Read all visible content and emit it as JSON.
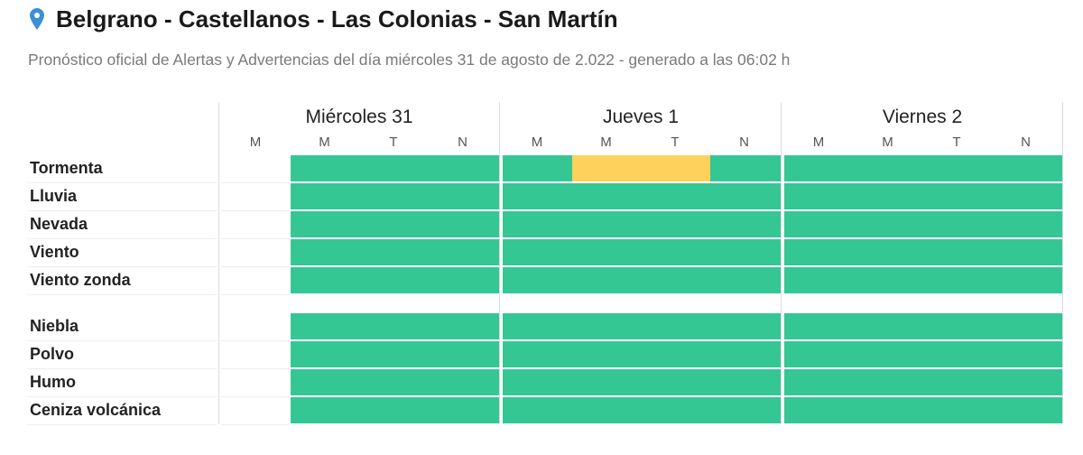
{
  "header": {
    "icon": "map-pin-icon",
    "title": "Belgrano - Castellanos - Las Colonias - San Martín",
    "subtitle": "Pronóstico oficial de Alertas y Advertencias del día miércoles 31 de agosto de 2.022 - generado a las 06:02 h"
  },
  "colors": {
    "green": "#34c794",
    "yellow": "#fdd15b",
    "pin": "#3d8fd8"
  },
  "days": [
    {
      "label": "Miércoles 31",
      "slots": [
        "M",
        "M",
        "T",
        "N"
      ]
    },
    {
      "label": "Jueves 1",
      "slots": [
        "M",
        "M",
        "T",
        "N"
      ]
    },
    {
      "label": "Viernes 2",
      "slots": [
        "M",
        "M",
        "T",
        "N"
      ]
    }
  ],
  "rows": [
    {
      "label": "Tormenta",
      "levels": [
        null,
        "green",
        "green",
        "green",
        "green",
        "yellow",
        "yellow",
        "green",
        "green",
        "green",
        "green",
        "green"
      ]
    },
    {
      "label": "Lluvia",
      "levels": [
        null,
        "green",
        "green",
        "green",
        "green",
        "green",
        "green",
        "green",
        "green",
        "green",
        "green",
        "green"
      ]
    },
    {
      "label": "Nevada",
      "levels": [
        null,
        "green",
        "green",
        "green",
        "green",
        "green",
        "green",
        "green",
        "green",
        "green",
        "green",
        "green"
      ]
    },
    {
      "label": "Viento",
      "levels": [
        null,
        "green",
        "green",
        "green",
        "green",
        "green",
        "green",
        "green",
        "green",
        "green",
        "green",
        "green"
      ]
    },
    {
      "label": "Viento zonda",
      "levels": [
        null,
        "green",
        "green",
        "green",
        "green",
        "green",
        "green",
        "green",
        "green",
        "green",
        "green",
        "green"
      ]
    },
    {
      "label": "Niebla",
      "levels": [
        null,
        "green",
        "green",
        "green",
        "green",
        "green",
        "green",
        "green",
        "green",
        "green",
        "green",
        "green"
      ]
    },
    {
      "label": "Polvo",
      "levels": [
        null,
        "green",
        "green",
        "green",
        "green",
        "green",
        "green",
        "green",
        "green",
        "green",
        "green",
        "green"
      ]
    },
    {
      "label": "Humo",
      "levels": [
        null,
        "green",
        "green",
        "green",
        "green",
        "green",
        "green",
        "green",
        "green",
        "green",
        "green",
        "green"
      ]
    },
    {
      "label": "Ceniza volcánica",
      "levels": [
        null,
        "green",
        "green",
        "green",
        "green",
        "green",
        "green",
        "green",
        "green",
        "green",
        "green",
        "green"
      ]
    }
  ]
}
